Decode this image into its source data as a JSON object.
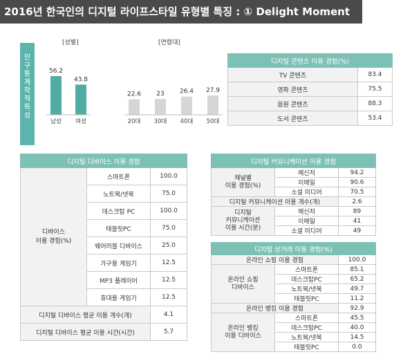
{
  "title": "2016년 한국인의 디지털 라이프스타일 유형별 특징 : ① Delight Moment",
  "demographics_label": [
    "인",
    "구",
    "통",
    "계",
    "학",
    "적",
    "특",
    "성"
  ],
  "chart_data": [
    {
      "type": "bar",
      "title": "[성별]",
      "categories": [
        "남성",
        "여성"
      ],
      "values": [
        56.2,
        43.8
      ],
      "color": "#4fada3"
    },
    {
      "type": "bar",
      "title": "[연령대]",
      "categories": [
        "20대",
        "30대",
        "40대",
        "50대"
      ],
      "values": [
        22.6,
        23,
        26.4,
        27.9
      ],
      "value_labels": [
        "22.6",
        "23",
        "26.4",
        "27.9"
      ],
      "color": "#d6d6d6"
    }
  ],
  "content_table": {
    "header": "디지털 콘텐츠 이용 경험(%)",
    "rows": [
      {
        "label": "TV 콘텐츠",
        "value": "83.4"
      },
      {
        "label": "영화 콘텐츠",
        "value": "75.5"
      },
      {
        "label": "음원 콘텐츠",
        "value": "88.3"
      },
      {
        "label": "도서 콘텐츠",
        "value": "53.4"
      }
    ]
  },
  "device_table": {
    "header": "디지털 디바이스 이용 경험",
    "group_label": "디바이스\n이용 경험(%)",
    "rows": [
      {
        "label": "스마트폰",
        "value": "100.0"
      },
      {
        "label": "노트북/넷북",
        "value": "75.0"
      },
      {
        "label": "데스크탑 PC",
        "value": "100.0"
      },
      {
        "label": "태블릿PC",
        "value": "75.0"
      },
      {
        "label": "웨어러블 디바이스",
        "value": "25.0"
      },
      {
        "label": "가구용 게임기",
        "value": "12.5"
      },
      {
        "label": "MP3 플레이어",
        "value": "12.5"
      },
      {
        "label": "휴대용 게임기",
        "value": "12.5"
      }
    ],
    "summary": [
      {
        "label": "디지털 디바이스 평균 이용 개수(개)",
        "value": "4.1"
      },
      {
        "label": "디지털 디바이스 평균 이용 시간(시간)",
        "value": "5.7"
      }
    ]
  },
  "comm_table": {
    "header": "디지털 커뮤니케이션 이용 경험",
    "group1_label": "채널별\n이용 경험(%)",
    "group1": [
      {
        "label": "메신저",
        "value": "94.2"
      },
      {
        "label": "이메일",
        "value": "90.6"
      },
      {
        "label": "소셜 미디어",
        "value": "70.5"
      }
    ],
    "middle": {
      "label": "디지털 커뮤니케이션 이용 개수(개)",
      "value": "2.6"
    },
    "group2_label": "디지털\n커뮤니케이션\n이용 시간(분)",
    "group2": [
      {
        "label": "메신저",
        "value": "89"
      },
      {
        "label": "이메일",
        "value": "41"
      },
      {
        "label": "소셜 미디어",
        "value": "49"
      }
    ]
  },
  "commerce_table": {
    "header": "디지털 상거래 이용 경험(%)",
    "shopping_total": {
      "label": "온라인 쇼핑 이용 경험",
      "value": "100.0"
    },
    "shopping_label": "온라인 쇼핑\n디바이스",
    "shopping": [
      {
        "label": "스마트폰",
        "value": "85.1"
      },
      {
        "label": "데스크탑PC",
        "value": "65.2"
      },
      {
        "label": "노트북/넷북",
        "value": "49.7"
      },
      {
        "label": "태블릿PC",
        "value": "11.2"
      }
    ],
    "banking_total": {
      "label": "온라인 뱅킹 이용 경험",
      "value": "92.9"
    },
    "banking_label": "온라인 뱅킹\n이용 디바이스",
    "banking": [
      {
        "label": "스마트폰",
        "value": "45.5"
      },
      {
        "label": "데스크탑PC",
        "value": "40.0"
      },
      {
        "label": "노트북/넷북",
        "value": "14.5"
      },
      {
        "label": "태블릿PC",
        "value": "0.0"
      }
    ]
  }
}
